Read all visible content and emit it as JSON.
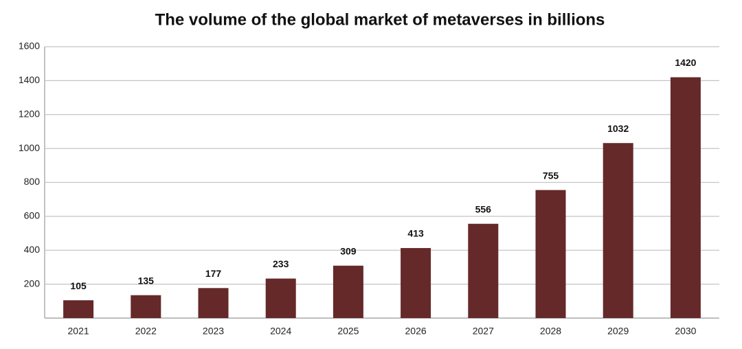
{
  "chart_data": {
    "type": "bar",
    "title": "The volume of the global market of metaverses in billions",
    "categories": [
      "2021",
      "2022",
      "2023",
      "2024",
      "2025",
      "2026",
      "2027",
      "2028",
      "2029",
      "2030"
    ],
    "values": [
      105,
      135,
      177,
      233,
      309,
      413,
      556,
      755,
      1032,
      1420
    ],
    "color": "#65292a",
    "ylim": [
      0,
      1600
    ],
    "yticks": [
      200,
      400,
      600,
      800,
      1000,
      1200,
      1400,
      1600
    ],
    "grid": true
  }
}
